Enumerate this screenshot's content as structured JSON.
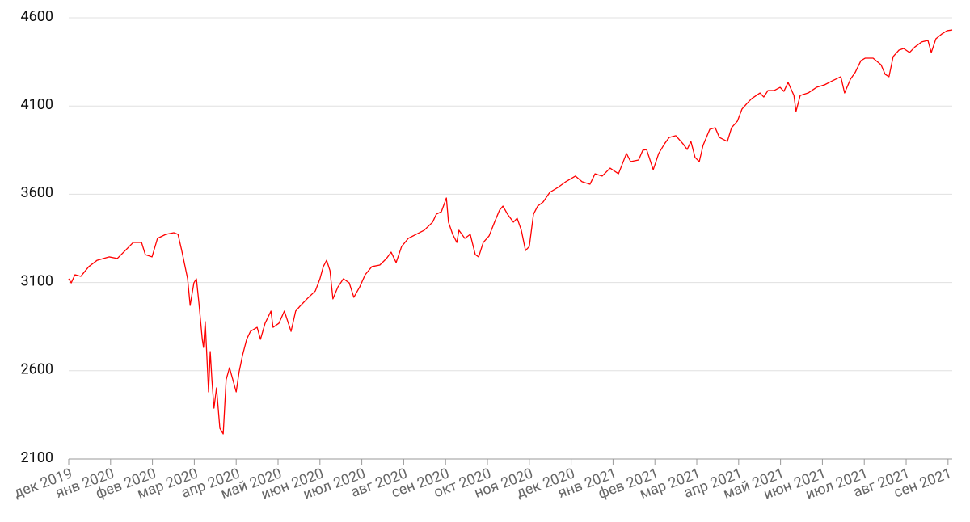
{
  "chart_data": {
    "type": "line",
    "x": [
      0,
      0.06,
      0.15,
      0.29,
      0.48,
      0.68,
      0.97,
      1.16,
      1.35,
      1.54,
      1.74,
      1.83,
      1.99,
      2.12,
      2.32,
      2.51,
      2.61,
      2.7,
      2.84,
      2.9,
      2.99,
      3.05,
      3.11,
      3.19,
      3.22,
      3.26,
      3.34,
      3.38,
      3.42,
      3.47,
      3.53,
      3.61,
      3.69,
      3.76,
      3.84,
      3.92,
      4,
      4.07,
      4.15,
      4.25,
      4.34,
      4.5,
      4.58,
      4.69,
      4.83,
      4.88,
      5.02,
      5.15,
      5.31,
      5.42,
      5.54,
      5.69,
      5.89,
      6,
      6.08,
      6.16,
      6.24,
      6.31,
      6.43,
      6.56,
      6.7,
      6.81,
      6.95,
      7.08,
      7.24,
      7.43,
      7.59,
      7.7,
      7.82,
      7.95,
      8.11,
      8.3,
      8.49,
      8.69,
      8.78,
      8.9,
      9.02,
      9.07,
      9.17,
      9.27,
      9.32,
      9.46,
      9.59,
      9.71,
      9.79,
      9.9,
      10.04,
      10.17,
      10.29,
      10.37,
      10.48,
      10.62,
      10.71,
      10.81,
      10.91,
      11,
      11.1,
      11.2,
      11.33,
      11.49,
      11.68,
      11.87,
      12.1,
      12.26,
      12.45,
      12.57,
      12.74,
      12.93,
      13.13,
      13.32,
      13.42,
      13.61,
      13.71,
      13.8,
      13.96,
      14.09,
      14.23,
      14.34,
      14.5,
      14.67,
      14.77,
      14.86,
      14.96,
      15.06,
      15.15,
      15.31,
      15.44,
      15.54,
      15.73,
      15.83,
      15.97,
      16.08,
      16.2,
      16.31,
      16.51,
      16.6,
      16.7,
      16.85,
      16.99,
      17.08,
      17.18,
      17.32,
      17.37,
      17.47,
      17.66,
      17.86,
      18.05,
      18.24,
      18.44,
      18.53,
      18.67,
      18.78,
      18.92,
      19.02,
      19.21,
      19.4,
      19.5,
      19.59,
      19.69,
      19.83,
      19.94,
      20.08,
      20.21,
      20.37,
      20.52,
      20.6,
      20.71,
      20.85,
      20.98,
      21.1
    ],
    "values": [
      3121,
      3098,
      3144,
      3135,
      3190,
      3226,
      3245,
      3236,
      3281,
      3327,
      3327,
      3258,
      3245,
      3350,
      3373,
      3382,
      3373,
      3281,
      3121,
      2970,
      3098,
      3121,
      2984,
      2778,
      2732,
      2878,
      2480,
      2709,
      2549,
      2388,
      2503,
      2274,
      2242,
      2549,
      2617,
      2549,
      2480,
      2594,
      2686,
      2778,
      2823,
      2846,
      2778,
      2869,
      2938,
      2846,
      2869,
      2938,
      2823,
      2938,
      2970,
      3007,
      3052,
      3121,
      3190,
      3226,
      3167,
      3007,
      3075,
      3121,
      3098,
      3016,
      3075,
      3144,
      3190,
      3199,
      3236,
      3272,
      3213,
      3304,
      3350,
      3373,
      3396,
      3442,
      3487,
      3501,
      3579,
      3442,
      3373,
      3327,
      3396,
      3350,
      3373,
      3258,
      3245,
      3327,
      3364,
      3442,
      3510,
      3533,
      3487,
      3442,
      3464,
      3396,
      3281,
      3304,
      3487,
      3533,
      3556,
      3611,
      3638,
      3671,
      3703,
      3671,
      3657,
      3716,
      3703,
      3748,
      3716,
      3831,
      3785,
      3794,
      3849,
      3854,
      3739,
      3831,
      3886,
      3922,
      3932,
      3886,
      3854,
      3899,
      3808,
      3785,
      3877,
      3968,
      3977,
      3922,
      3899,
      3977,
      4014,
      4083,
      4115,
      4142,
      4174,
      4151,
      4188,
      4188,
      4206,
      4183,
      4234,
      4160,
      4069,
      4160,
      4174,
      4206,
      4220,
      4243,
      4266,
      4174,
      4252,
      4289,
      4357,
      4371,
      4371,
      4334,
      4279,
      4266,
      4380,
      4417,
      4426,
      4403,
      4435,
      4463,
      4472,
      4403,
      4481,
      4508,
      4527,
      4531
    ],
    "color": "#ff0000",
    "xlim": [
      0,
      21.1
    ],
    "xticks": [
      {
        "value": 0,
        "label": "дек 2019"
      },
      {
        "value": 1,
        "label": "янв 2020"
      },
      {
        "value": 2,
        "label": "фев 2020"
      },
      {
        "value": 3,
        "label": "мар 2020"
      },
      {
        "value": 4,
        "label": "апр 2020"
      },
      {
        "value": 5,
        "label": "май 2020"
      },
      {
        "value": 6,
        "label": "июн 2020"
      },
      {
        "value": 7,
        "label": "июл 2020"
      },
      {
        "value": 8,
        "label": "авг 2020"
      },
      {
        "value": 9,
        "label": "сен 2020"
      },
      {
        "value": 10,
        "label": "окт 2020"
      },
      {
        "value": 11,
        "label": "ноя 2020"
      },
      {
        "value": 12,
        "label": "дек 2020"
      },
      {
        "value": 13,
        "label": "янв 2021"
      },
      {
        "value": 14,
        "label": "фев 2021"
      },
      {
        "value": 15,
        "label": "мар 2021"
      },
      {
        "value": 16,
        "label": "апр 2021"
      },
      {
        "value": 17,
        "label": "май 2021"
      },
      {
        "value": 18,
        "label": "июн 2021"
      },
      {
        "value": 19,
        "label": "июл 2021"
      },
      {
        "value": 20,
        "label": "авг 2021"
      },
      {
        "value": 21,
        "label": "сен 2021"
      }
    ],
    "ylim": [
      2100,
      4600
    ],
    "yticks": [
      2100,
      2600,
      3100,
      3600,
      4100,
      4600
    ],
    "grid": true
  }
}
